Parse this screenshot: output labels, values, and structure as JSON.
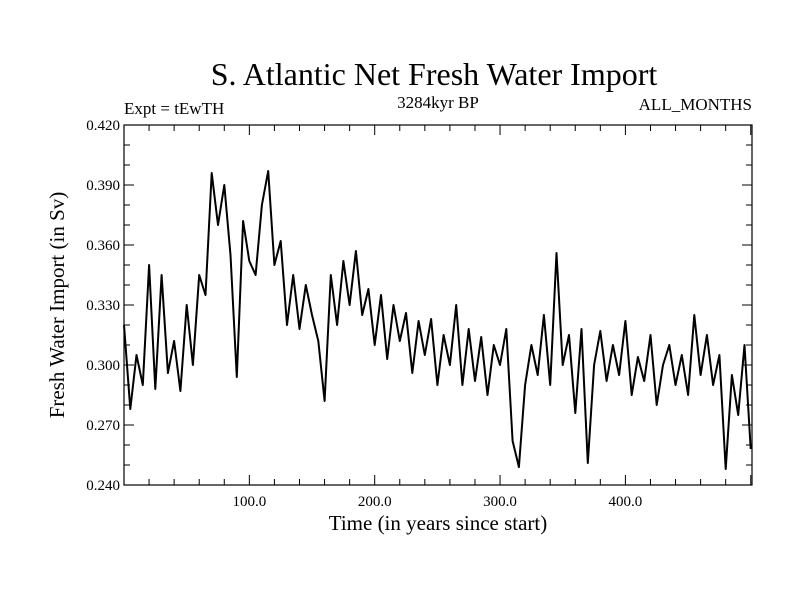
{
  "chart_data": {
    "type": "line",
    "title": "S. Atlantic Net Fresh Water Import",
    "subtitle_left": "Expt = tEwTH",
    "subtitle_center": "3284kyr BP",
    "subtitle_right": "ALL_MONTHS",
    "xlabel": "Time (in years since start)",
    "ylabel": "Fresh Water Import (in Sv)",
    "xlim": [
      0,
      501
    ],
    "ylim": [
      0.24,
      0.42
    ],
    "x_ticks": [
      100,
      200,
      300,
      400
    ],
    "x_tick_labels": [
      "100.0",
      "200.0",
      "300.0",
      "400.0"
    ],
    "y_ticks": [
      0.24,
      0.27,
      0.3,
      0.33,
      0.36,
      0.39,
      0.42
    ],
    "y_tick_labels": [
      "0.240",
      "0.270",
      "0.300",
      "0.330",
      "0.360",
      "0.390",
      "0.420"
    ],
    "grid": false,
    "line_color": "#000000",
    "series": [
      {
        "name": "Fresh Water Import",
        "x_start": 0,
        "x_step": 5,
        "values": [
          0.32,
          0.278,
          0.305,
          0.29,
          0.35,
          0.288,
          0.345,
          0.296,
          0.312,
          0.287,
          0.33,
          0.3,
          0.345,
          0.335,
          0.396,
          0.37,
          0.39,
          0.355,
          0.294,
          0.372,
          0.352,
          0.345,
          0.38,
          0.397,
          0.35,
          0.362,
          0.32,
          0.345,
          0.318,
          0.34,
          0.325,
          0.312,
          0.282,
          0.345,
          0.32,
          0.352,
          0.33,
          0.357,
          0.325,
          0.338,
          0.31,
          0.335,
          0.303,
          0.33,
          0.312,
          0.326,
          0.296,
          0.322,
          0.305,
          0.323,
          0.29,
          0.315,
          0.3,
          0.33,
          0.29,
          0.318,
          0.292,
          0.314,
          0.285,
          0.31,
          0.3,
          0.318,
          0.262,
          0.249,
          0.29,
          0.31,
          0.295,
          0.325,
          0.29,
          0.356,
          0.3,
          0.315,
          0.276,
          0.318,
          0.251,
          0.3,
          0.317,
          0.292,
          0.31,
          0.295,
          0.322,
          0.285,
          0.304,
          0.292,
          0.315,
          0.28,
          0.3,
          0.31,
          0.29,
          0.305,
          0.285,
          0.325,
          0.295,
          0.315,
          0.29,
          0.305,
          0.248,
          0.295,
          0.275,
          0.31,
          0.258
        ]
      }
    ]
  }
}
